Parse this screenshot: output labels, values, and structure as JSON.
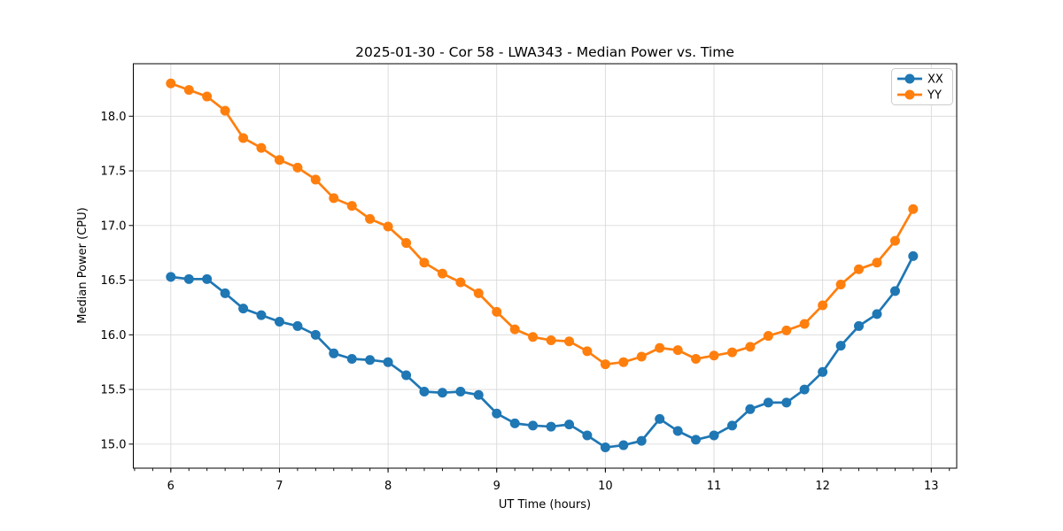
{
  "chart_data": {
    "type": "line",
    "title": "2025-01-30 - Cor 58 - LWA343 - Median Power vs. Time",
    "xlabel": "UT Time (hours)",
    "ylabel": "Median Power (CPU)",
    "grid": true,
    "legend_position": "upper right",
    "marker": "circle",
    "xlim": [
      5.655,
      13.234
    ],
    "ylim": [
      14.78,
      18.48
    ],
    "xticks": [
      6,
      7,
      8,
      9,
      10,
      11,
      12,
      13
    ],
    "yticks": [
      15.0,
      15.5,
      16.0,
      16.5,
      17.0,
      17.5,
      18.0
    ],
    "x_minor_step": 0.166667,
    "x": [
      6.0,
      6.167,
      6.333,
      6.5,
      6.667,
      6.833,
      7.0,
      7.167,
      7.333,
      7.5,
      7.667,
      7.833,
      8.0,
      8.167,
      8.333,
      8.5,
      8.667,
      8.833,
      9.0,
      9.167,
      9.333,
      9.5,
      9.667,
      9.833,
      10.0,
      10.167,
      10.333,
      10.5,
      10.667,
      10.833,
      11.0,
      11.167,
      11.333,
      11.5,
      11.667,
      11.833,
      12.0,
      12.167,
      12.333,
      12.5,
      12.667,
      12.833
    ],
    "series": [
      {
        "name": "XX",
        "color": "#1f77b4",
        "values": [
          16.53,
          16.51,
          16.51,
          16.38,
          16.24,
          16.18,
          16.12,
          16.08,
          16.0,
          15.83,
          15.78,
          15.77,
          15.75,
          15.63,
          15.48,
          15.47,
          15.48,
          15.45,
          15.28,
          15.19,
          15.17,
          15.16,
          15.18,
          15.08,
          14.97,
          14.99,
          15.03,
          15.23,
          15.12,
          15.04,
          15.08,
          15.17,
          15.32,
          15.38,
          15.38,
          15.5,
          15.66,
          15.9,
          16.08,
          16.19,
          16.4,
          16.72
        ]
      },
      {
        "name": "YY",
        "color": "#ff7f0e",
        "values": [
          18.3,
          18.24,
          18.18,
          18.05,
          17.8,
          17.71,
          17.6,
          17.53,
          17.42,
          17.25,
          17.18,
          17.06,
          16.99,
          16.84,
          16.66,
          16.56,
          16.48,
          16.38,
          16.21,
          16.05,
          15.98,
          15.95,
          15.94,
          15.85,
          15.73,
          15.75,
          15.8,
          15.88,
          15.86,
          15.78,
          15.81,
          15.84,
          15.89,
          15.99,
          16.04,
          16.1,
          16.27,
          16.46,
          16.6,
          16.66,
          16.86,
          17.15
        ]
      }
    ],
    "colors": {
      "grid": "#d9d9d9",
      "spine": "#000000",
      "legend_border": "#cccccc",
      "background": "#ffffff"
    }
  }
}
